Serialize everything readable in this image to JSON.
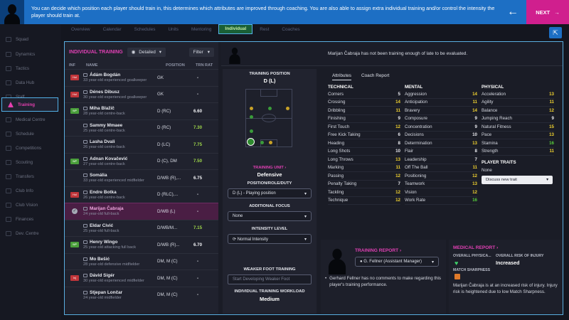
{
  "banner": {
    "text": "You can decide which position each player should train in, this determines which attributes are improved through coaching. You are also able to assign extra individual training and/or control the intensity the player should train at.",
    "back_icon": "arrow-left-icon",
    "next_label": "NEXT"
  },
  "sidebar": {
    "items": [
      {
        "label": "Squad"
      },
      {
        "label": "Dynamics"
      },
      {
        "label": "Tactics"
      },
      {
        "label": "Data Hub"
      },
      {
        "label": "Staff"
      },
      {
        "label": "Training"
      },
      {
        "label": "Medical Centre"
      },
      {
        "label": "Schedule"
      },
      {
        "label": "Competitions"
      },
      {
        "label": "Scouting"
      },
      {
        "label": "Transfers"
      },
      {
        "label": "Club Info"
      },
      {
        "label": "Club Vision"
      },
      {
        "label": "Finances"
      },
      {
        "label": "Dev. Centre"
      }
    ],
    "active_index": 5
  },
  "tabs": [
    {
      "label": "Overview"
    },
    {
      "label": "Calendar"
    },
    {
      "label": "Schedules"
    },
    {
      "label": "Units"
    },
    {
      "label": "Mentoring"
    },
    {
      "label": "Individual"
    },
    {
      "label": "Rest"
    },
    {
      "label": "Coaches"
    }
  ],
  "list": {
    "title": "INDIVIDUAL TRAINING",
    "view_label": "Detailed",
    "filter_label": "Filter",
    "columns": {
      "inf": "INF",
      "name": "NAME",
      "position": "POSITION",
      "rating": "TRN RAT"
    },
    "players": [
      {
        "badge": "Hol",
        "badge_color": "#c0353a",
        "name": "Ádám Bogdán",
        "desc": "33 year-old experienced goalkeeper",
        "position": "GK",
        "rating": "-",
        "rating_color": "#e6e8ee"
      },
      {
        "badge": "Hol",
        "badge_color": "#c0353a",
        "name": "Dénes Dibusz",
        "desc": "30 year-old experienced goalkeeper",
        "position": "GK",
        "rating": "-",
        "rating_color": "#e6e8ee"
      },
      {
        "badge": "WP",
        "badge_color": "#4a9e3b",
        "name": "Miha Blažič",
        "desc": "28 year-old centre-back",
        "position": "D (RC)",
        "rating": "6.60",
        "rating_color": "#f2f3f6"
      },
      {
        "badge": "",
        "badge_color": "",
        "name": "Sammy Mmaee",
        "desc": "25 year-old centre-back",
        "position": "D (RC)",
        "rating": "7.30",
        "rating_color": "#9ed64a"
      },
      {
        "badge": "",
        "badge_color": "",
        "name": "Lasha Dvali",
        "desc": "26 year-old centre-back",
        "position": "D (LC)",
        "rating": "7.75",
        "rating_color": "#9ed64a"
      },
      {
        "badge": "WP",
        "badge_color": "#4a9e3b",
        "name": "Adnan Kovačević",
        "desc": "27 year-old centre-back",
        "position": "D (C), DM",
        "rating": "7.50",
        "rating_color": "#9ed64a"
      },
      {
        "badge": "",
        "badge_color": "",
        "name": "Somália",
        "desc": "33 year-old experienced midfielder",
        "position": "D/WB (R),...",
        "rating": "6.75",
        "rating_color": "#f2f3f6"
      },
      {
        "badge": "Hol",
        "badge_color": "#c0353a",
        "name": "Endre Botka",
        "desc": "26 year-old centre-back",
        "position": "D (RLC),...",
        "rating": "-",
        "rating_color": "#e6e8ee"
      },
      {
        "badge": "",
        "badge_color": "",
        "name": "Marijan Čabraja",
        "desc": "24 year-old full-back",
        "position": "D/WB (L)",
        "rating": "-",
        "rating_color": "#e6e8ee",
        "selected": true
      },
      {
        "badge": "",
        "badge_color": "",
        "name": "Eldar Civić",
        "desc": "25 year-old full-back",
        "position": "D/WB/M...",
        "rating": "7.15",
        "rating_color": "#9ed64a"
      },
      {
        "badge": "WP",
        "badge_color": "#4a9e3b",
        "name": "Henry Wingo",
        "desc": "25 year-old attacking full back",
        "position": "D/WB (R)...",
        "rating": "6.70",
        "rating_color": "#f2f3f6"
      },
      {
        "badge": "",
        "badge_color": "",
        "name": "Mo Bešić",
        "desc": "28 year-old defensive midfielder",
        "position": "DM, M (C)",
        "rating": "-",
        "rating_color": "#e6e8ee"
      },
      {
        "badge": "Inj",
        "badge_color": "#c0353a",
        "name": "Dávid Sigér",
        "desc": "30 year-old experienced midfielder",
        "position": "DM, M (C)",
        "rating": "-",
        "rating_color": "#e6e8ee"
      },
      {
        "badge": "",
        "badge_color": "",
        "name": "Stjepan Lončar",
        "desc": "24 year-old midfielder",
        "position": "DM, M (C)",
        "rating": "-",
        "rating_color": "#e6e8ee"
      }
    ]
  },
  "player_header": {
    "message": "Marijan Čabraja has not been training enough of late to be evaluated."
  },
  "training": {
    "position_label": "TRAINING POSITION",
    "position_value": "D (L)",
    "unit_label": "TRAINING UNIT",
    "unit_value": "Defensive",
    "role_label": "POSITION/ROLE/DUTY",
    "role_value": "D (L) - Playing position",
    "focus_label": "ADDITIONAL FOCUS",
    "focus_value": "None",
    "intensity_label": "INTENSITY LEVEL",
    "intensity_value": "Normal Intensity",
    "weak_label": "WEAKER FOOT TRAINING",
    "weak_placeholder": "Start Developing Weaker Foot",
    "workload_label": "INDIVIDUAL TRAINING WORKLOAD",
    "workload_value": "Medium"
  },
  "attributes": {
    "tabs": [
      "Attributes",
      "Coach Report"
    ],
    "technical_label": "TECHNICAL",
    "mental_label": "MENTAL",
    "physical_label": "PHYSICAL",
    "technical": [
      {
        "name": "Corners",
        "value": "5"
      },
      {
        "name": "Crossing",
        "value": "14"
      },
      {
        "name": "Dribbling",
        "value": "11"
      },
      {
        "name": "Finishing",
        "value": "9"
      },
      {
        "name": "First Touch",
        "value": "12"
      },
      {
        "name": "Free Kick Taking",
        "value": "6"
      },
      {
        "name": "Heading",
        "value": "8"
      },
      {
        "name": "Long Shots",
        "value": "10"
      },
      {
        "name": "Long Throws",
        "value": "13"
      },
      {
        "name": "Marking",
        "value": "11"
      },
      {
        "name": "Passing",
        "value": "12"
      },
      {
        "name": "Penalty Taking",
        "value": "7"
      },
      {
        "name": "Tackling",
        "value": "12"
      },
      {
        "name": "Technique",
        "value": "12"
      }
    ],
    "mental": [
      {
        "name": "Aggression",
        "value": "14"
      },
      {
        "name": "Anticipation",
        "value": "11"
      },
      {
        "name": "Bravery",
        "value": "14"
      },
      {
        "name": "Composure",
        "value": "9"
      },
      {
        "name": "Concentration",
        "value": "9"
      },
      {
        "name": "Decisions",
        "value": "10"
      },
      {
        "name": "Determination",
        "value": "13"
      },
      {
        "name": "Flair",
        "value": "8"
      },
      {
        "name": "Leadership",
        "value": "7"
      },
      {
        "name": "Off The Ball",
        "value": "11"
      },
      {
        "name": "Positioning",
        "value": "12"
      },
      {
        "name": "Teamwork",
        "value": "13"
      },
      {
        "name": "Vision",
        "value": "12"
      },
      {
        "name": "Work Rate",
        "value": "16"
      }
    ],
    "physical": [
      {
        "name": "Acceleration",
        "value": "13"
      },
      {
        "name": "Agility",
        "value": "11"
      },
      {
        "name": "Balance",
        "value": "12"
      },
      {
        "name": "Jumping Reach",
        "value": "9"
      },
      {
        "name": "Natural Fitness",
        "value": "15"
      },
      {
        "name": "Pace",
        "value": "13"
      },
      {
        "name": "Stamina",
        "value": "16"
      },
      {
        "name": "Strength",
        "value": "11"
      }
    ],
    "traits_label": "PLAYER TRAITS",
    "traits_value": "None",
    "traits_button": "Discuss new trait"
  },
  "training_report": {
    "title": "TRAINING REPORT",
    "coach": "G. Fellner (Assistant Manager)",
    "comment": "Gerhard Fellner has no comments to make regarding this player's training performance."
  },
  "medical_report": {
    "title": "MEDICAL REPORT",
    "fitness_label": "OVERALL PHYSICA...",
    "risk_label": "OVERALL RISK OF INJURY",
    "risk_value": "Increased",
    "sharpness_label": "MATCH SHARPNESS",
    "comment": "Marijan Čabraja is at an increased risk of injury. Injury risk is heightened due to low Match Sharpness."
  }
}
